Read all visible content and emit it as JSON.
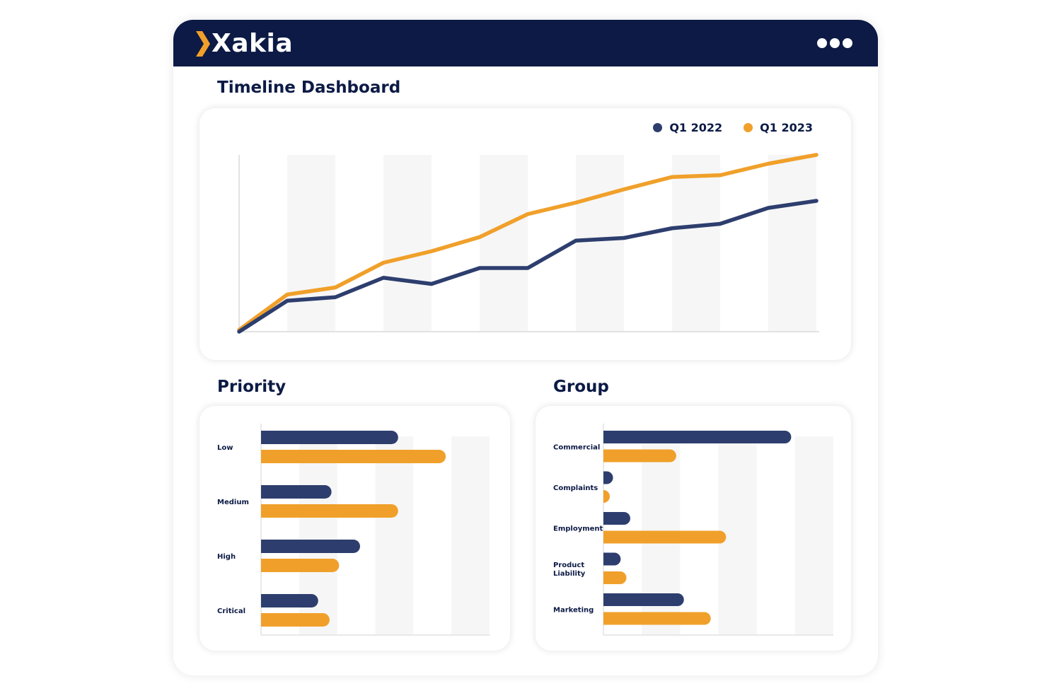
{
  "app": {
    "brand": "Xakia"
  },
  "header": {
    "menu_icon": "more-dots-icon"
  },
  "colors": {
    "navy": "#0c1a45",
    "series_a": "#2d3e6e",
    "series_b": "#f0a02a"
  },
  "timeline": {
    "title": "Timeline Dashboard",
    "legend": [
      {
        "label": "Q1 2022",
        "color": "#2d3e6e"
      },
      {
        "label": "Q1 2023",
        "color": "#f0a02a"
      }
    ]
  },
  "priority": {
    "title": "Priority"
  },
  "group": {
    "title": "Group"
  },
  "chart_data": [
    {
      "type": "line",
      "x": [
        0,
        1,
        2,
        3,
        4,
        5,
        6,
        7,
        8,
        9,
        10,
        11,
        12
      ],
      "series": [
        {
          "name": "Q1 2022",
          "values": [
            0,
            17.5,
            19.5,
            30.5,
            27,
            36,
            36,
            51.5,
            53,
            58.5,
            61,
            70,
            74
          ]
        },
        {
          "name": "Q1 2023",
          "values": [
            1,
            21,
            25,
            39,
            45.5,
            53.5,
            66.5,
            73,
            80.5,
            87.5,
            88.5,
            95,
            100
          ]
        }
      ],
      "ylim": [
        0,
        100
      ],
      "grid": true
    },
    {
      "type": "bar",
      "orientation": "horizontal",
      "categories": [
        "Low",
        "Medium",
        "High",
        "Critical"
      ],
      "series": [
        {
          "name": "Q1 2022",
          "values": [
            36,
            18.5,
            26,
            15
          ]
        },
        {
          "name": "Q1 2023",
          "values": [
            48.5,
            36,
            20.5,
            18
          ]
        }
      ],
      "xlim": [
        0,
        60
      ]
    },
    {
      "type": "bar",
      "orientation": "horizontal",
      "categories": [
        "Commercial",
        "Complaints",
        "Employment",
        "Product\nLiability",
        "Marketing"
      ],
      "series": [
        {
          "name": "Q1 2022",
          "values": [
            49,
            2.5,
            7,
            4.5,
            21
          ]
        },
        {
          "name": "Q1 2023",
          "values": [
            19,
            1.5,
            32,
            6,
            28
          ]
        }
      ],
      "xlim": [
        0,
        60
      ]
    }
  ]
}
